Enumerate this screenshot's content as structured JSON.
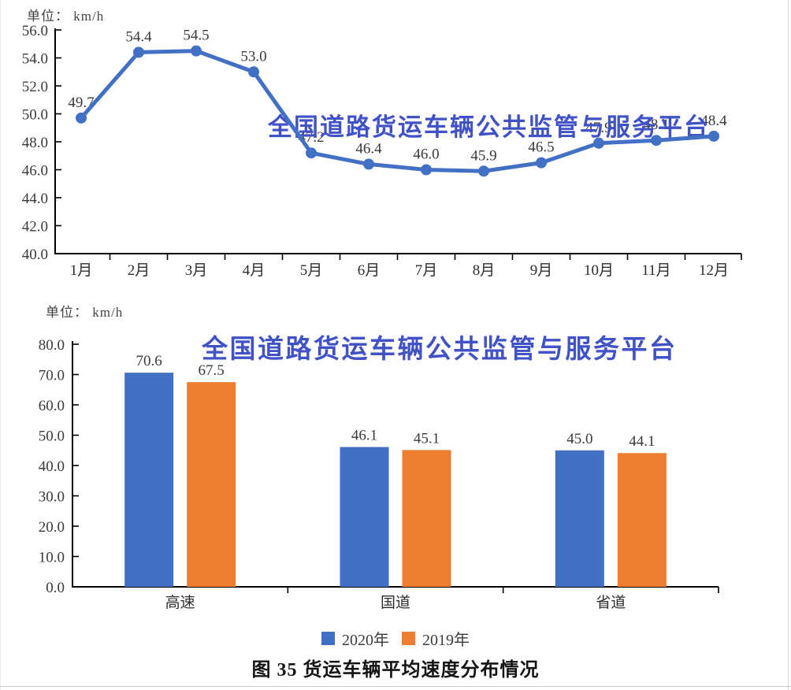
{
  "caption": "图 35 货运车辆平均速度分布情况",
  "chart_data": [
    {
      "type": "line",
      "unit_label": "单位： km/h",
      "watermark": "全国道路货运车辆公共监管与服务平台",
      "x": [
        "1月",
        "2月",
        "3月",
        "4月",
        "5月",
        "6月",
        "7月",
        "8月",
        "9月",
        "10月",
        "11月",
        "12月"
      ],
      "series": [
        {
          "color": "#4170c4",
          "values": [
            49.7,
            54.4,
            54.5,
            53.0,
            47.2,
            46.4,
            46.0,
            45.9,
            46.5,
            47.9,
            48.1,
            48.4
          ]
        }
      ],
      "ylim": [
        40.0,
        56.0
      ],
      "ystep": 2.0,
      "grid": false,
      "value_labels": true
    },
    {
      "type": "bar",
      "unit_label": "单位： km/h",
      "watermark": "全国道路货运车辆公共监管与服务平台",
      "categories": [
        "高速",
        "国道",
        "省道"
      ],
      "series": [
        {
          "name": "2020年",
          "color": "#4170c4",
          "values": [
            70.6,
            46.1,
            45.0
          ]
        },
        {
          "name": "2019年",
          "color": "#ed7d31",
          "values": [
            67.5,
            45.1,
            44.1
          ]
        }
      ],
      "ylim": [
        0.0,
        80.0
      ],
      "ystep": 10.0,
      "grid": false,
      "legend_position": "bottom",
      "value_labels": true
    }
  ],
  "colors": {
    "blue_series": "#4170c4",
    "orange_series": "#ed7d31",
    "watermark_blue": "#4152c6",
    "axis": "#000000",
    "label_text": "#3a3a3a"
  }
}
